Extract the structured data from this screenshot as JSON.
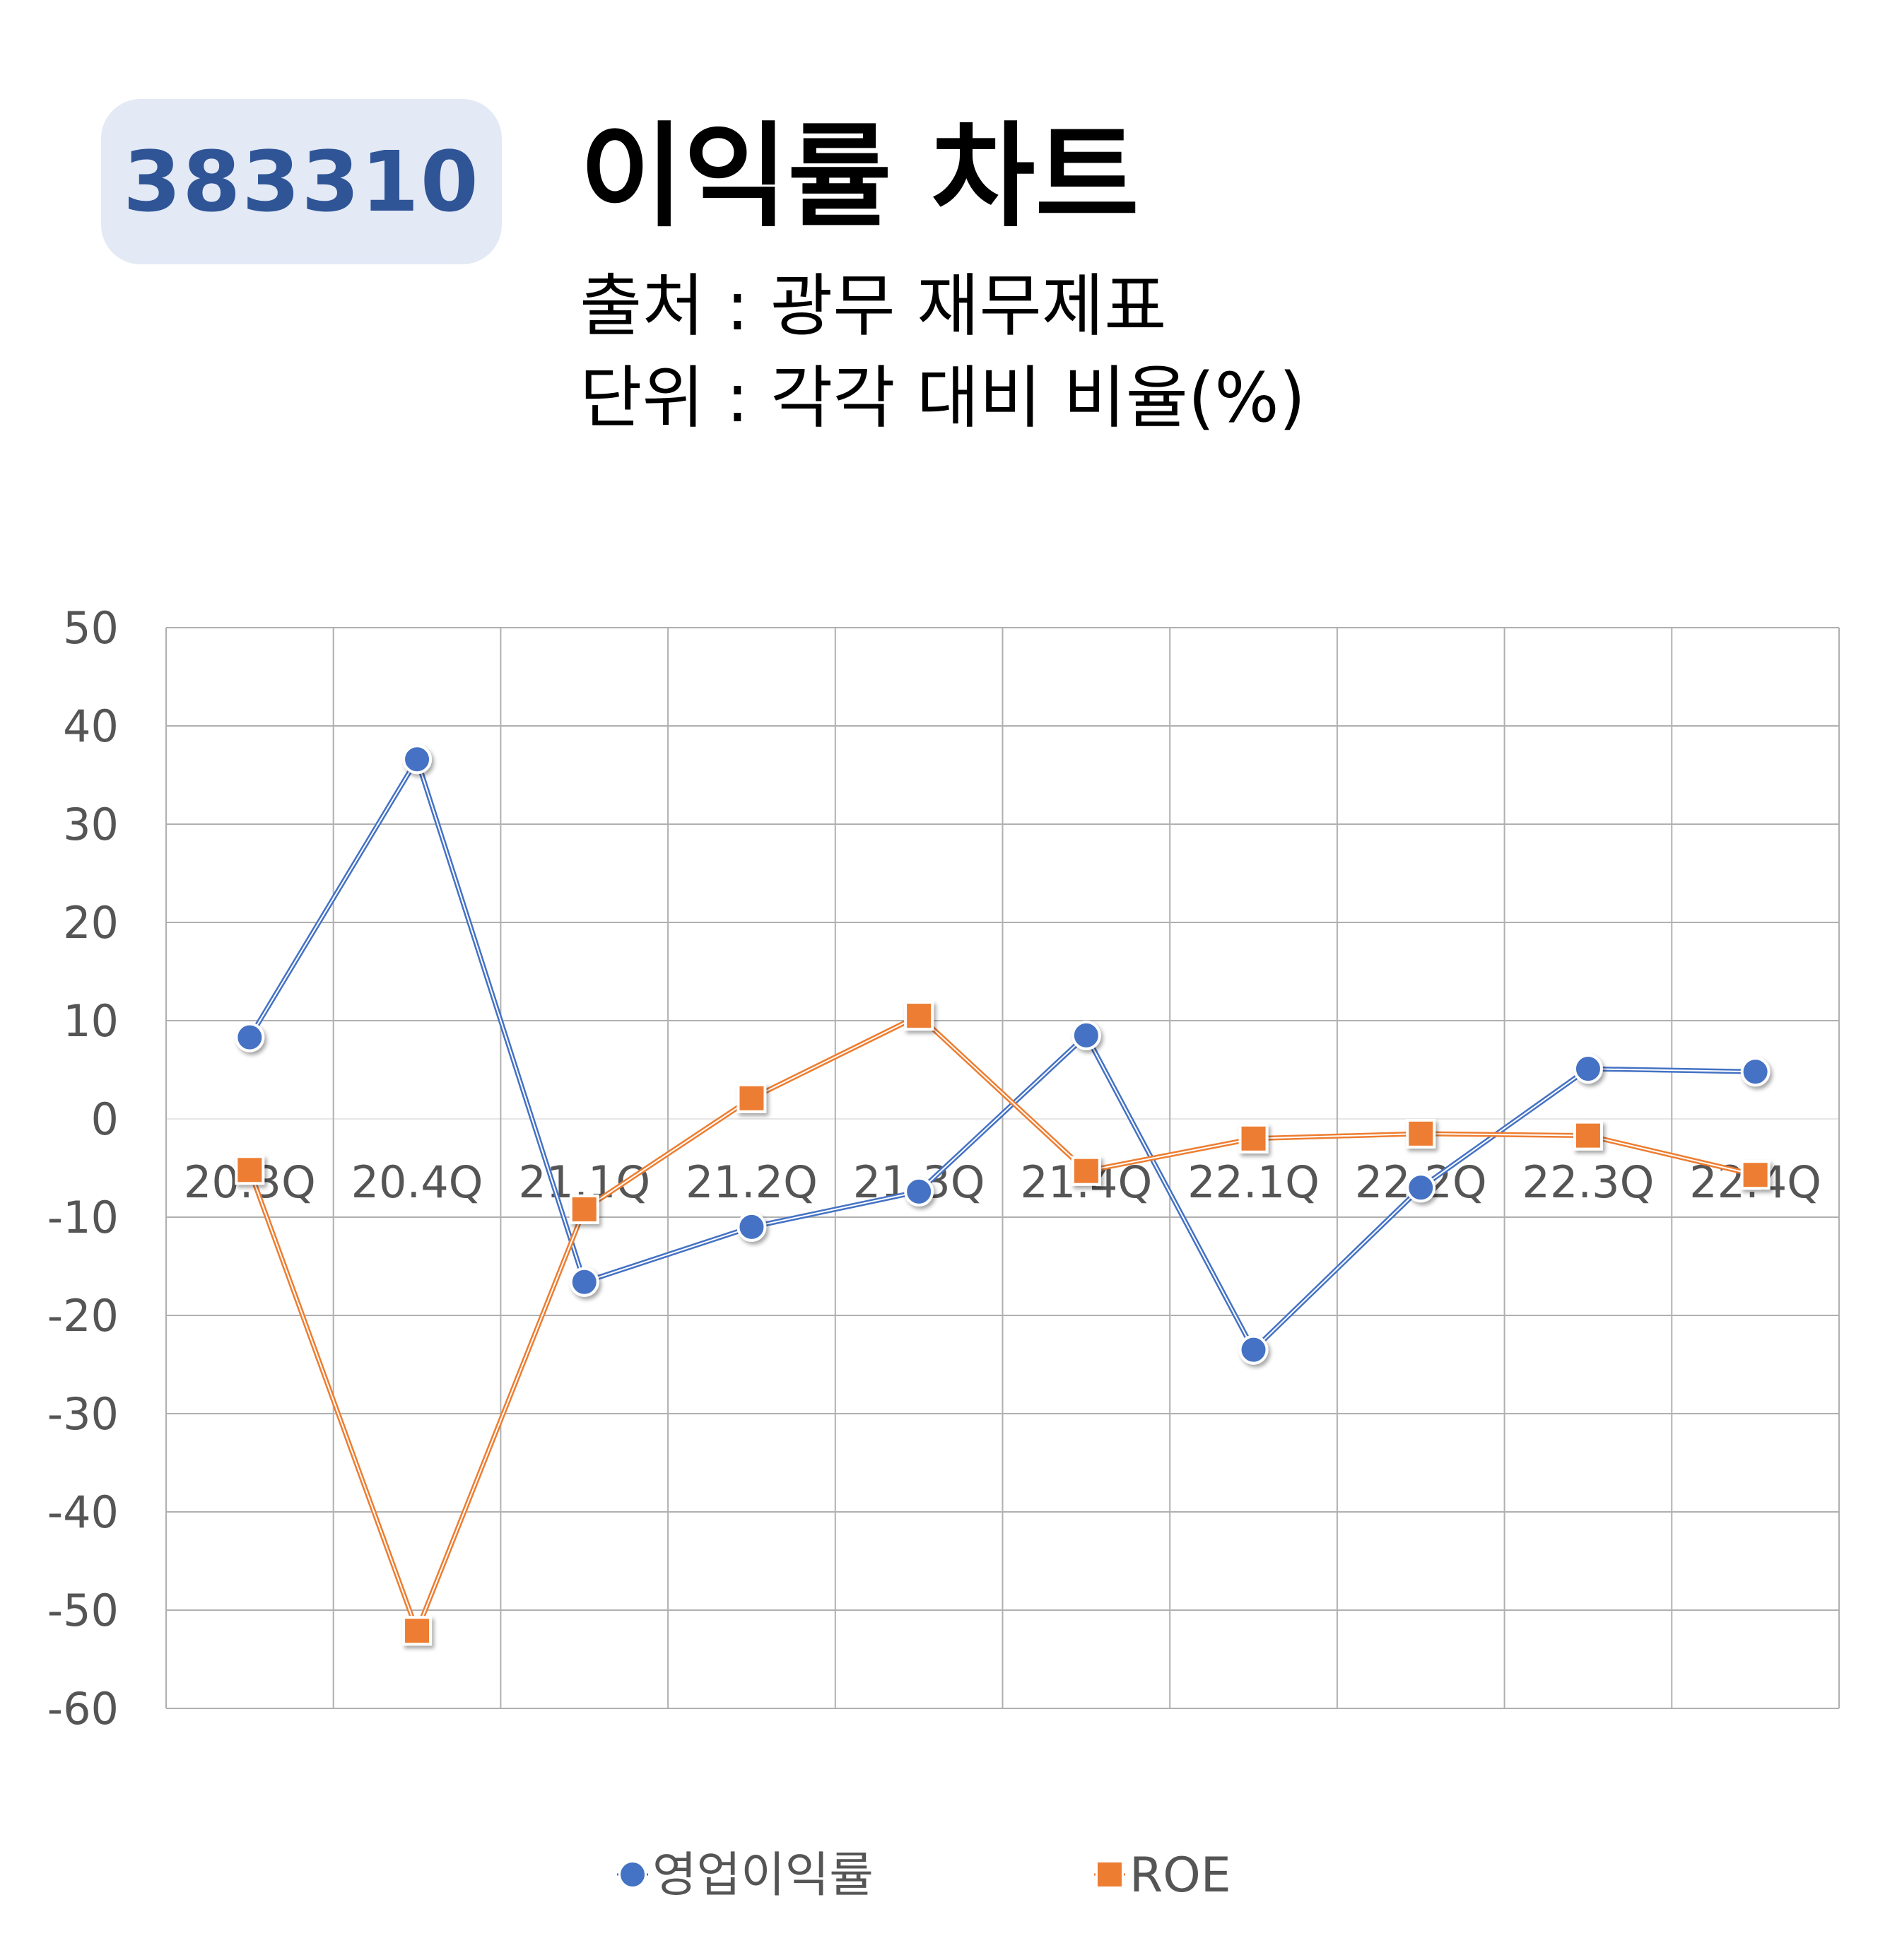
{
  "header": {
    "code": "383310",
    "title": "이익률 차트",
    "source": "출처 : 광무 재무제표",
    "unit": "단위 : 각각 대비 비율(%)"
  },
  "chart_data": {
    "type": "line",
    "categories": [
      "20.3Q",
      "20.4Q",
      "21.1Q",
      "21.2Q",
      "21.3Q",
      "21.4Q",
      "22.1Q",
      "22.2Q",
      "22.3Q",
      "22.4Q"
    ],
    "ylim": [
      -60,
      50
    ],
    "yticks": [
      50,
      40,
      30,
      20,
      10,
      0,
      -10,
      -20,
      -30,
      -40,
      -50,
      -60
    ],
    "grid": true,
    "legend_position": "bottom",
    "series": [
      {
        "name": "영업이익률",
        "color": "#4472c4",
        "marker": "circle",
        "values": [
          8.3,
          36.6,
          -16.6,
          -11.0,
          -7.4,
          8.5,
          -23.5,
          -7.0,
          5.1,
          4.8
        ]
      },
      {
        "name": "ROE",
        "color": "#ed7d31",
        "marker": "square",
        "values": [
          -5.2,
          -52.1,
          -9.2,
          2.1,
          10.5,
          -5.3,
          -2.0,
          -1.5,
          -1.7,
          -5.7
        ]
      }
    ]
  }
}
